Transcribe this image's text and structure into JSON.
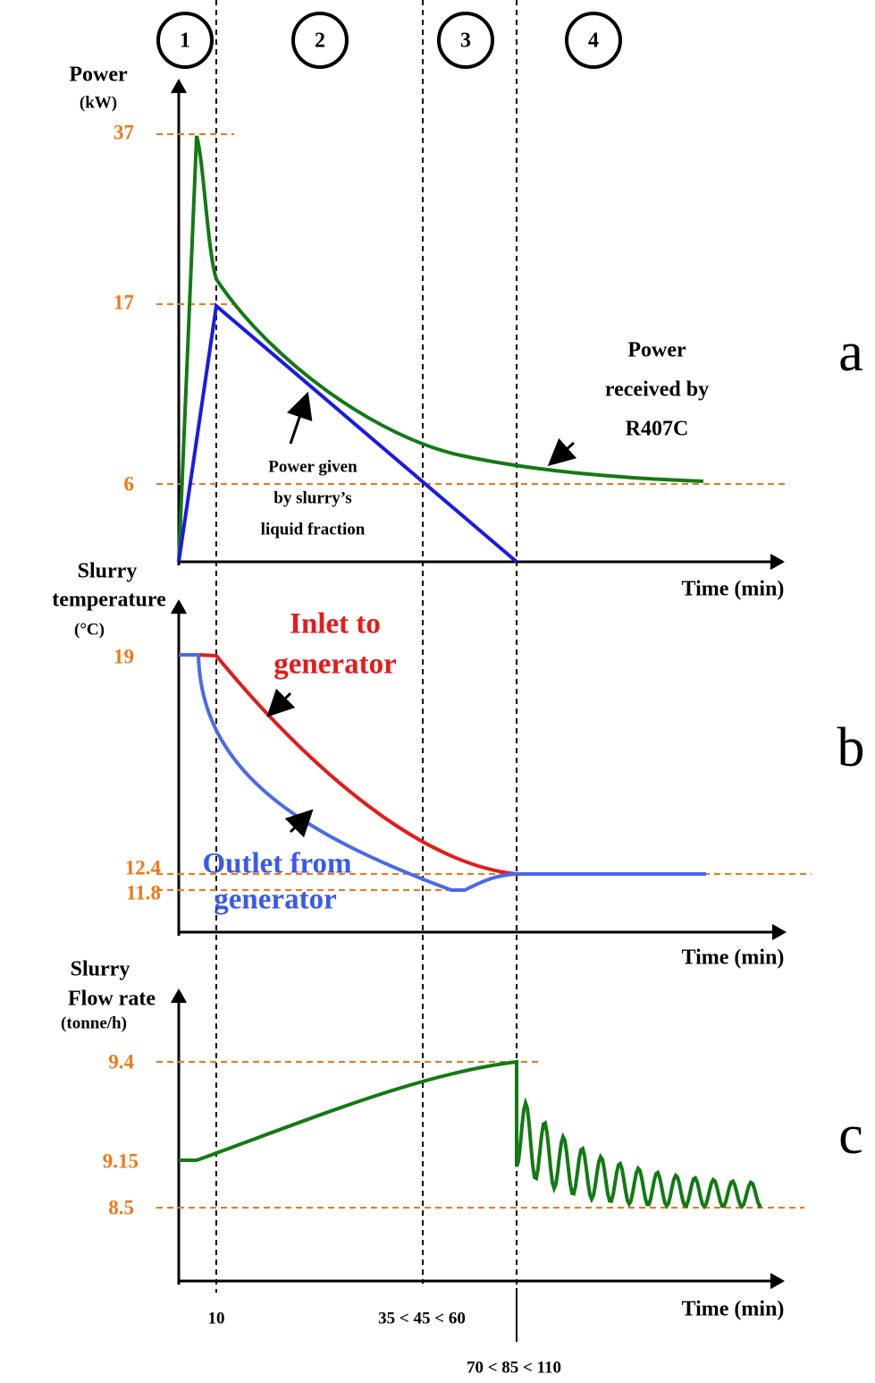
{
  "phases": [
    "1",
    "2",
    "3",
    "4"
  ],
  "panels": [
    {
      "letter": "a",
      "y_label": [
        "Power",
        "(kW)"
      ],
      "y_ticks": [
        "37",
        "17",
        "6"
      ],
      "x_label": "Time (min)",
      "annotations": [
        [
          "Power",
          "received by",
          "R407C"
        ],
        [
          "Power given",
          "by slurry’s",
          "liquid fraction"
        ]
      ]
    },
    {
      "letter": "b",
      "y_label": [
        "Slurry",
        "temperature",
        "(°C)"
      ],
      "y_ticks": [
        "19",
        "12.4",
        "11.8"
      ],
      "x_label": "Time (min)",
      "annotations": [
        [
          "Inlet to",
          "generator"
        ],
        [
          "Outlet from",
          "generator"
        ]
      ]
    },
    {
      "letter": "c",
      "y_label": [
        "Slurry",
        "Flow rate",
        "(tonne/h)"
      ],
      "y_ticks": [
        "9.4",
        "9.15",
        "8.5"
      ],
      "x_label": "Time (min)",
      "annotations": []
    }
  ],
  "time_markers": [
    "10",
    "35 < 45 < 60",
    "70 < 85 < 110"
  ]
}
